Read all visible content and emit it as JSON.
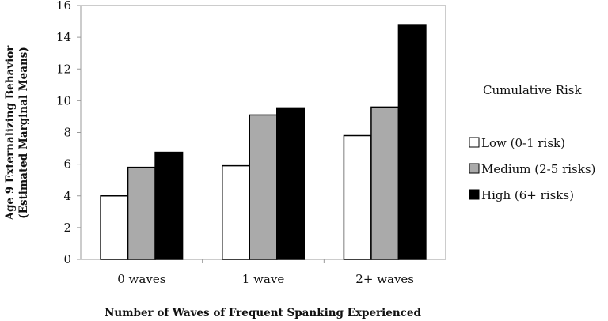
{
  "chart_data": {
    "type": "bar",
    "title": "",
    "xlabel": "Number of Waves of Frequent Spanking Experienced",
    "ylabel": [
      "Age 9 Externalizing Behavior",
      "(Estimated Marginal Means)"
    ],
    "ylim": [
      0,
      16
    ],
    "yticks": [
      0,
      2,
      4,
      6,
      8,
      10,
      12,
      14,
      16
    ],
    "categories": [
      "0 waves",
      "1 wave",
      "2+ waves"
    ],
    "legend_title": "Cumulative Risk",
    "legend_position": "right",
    "grid": false,
    "series": [
      {
        "name": "Low (0-1 risk)",
        "color": "#ffffff",
        "values": [
          4.0,
          5.9,
          7.8
        ]
      },
      {
        "name": "Medium (2-5 risks)",
        "color": "#aaaaaa",
        "values": [
          5.8,
          9.1,
          9.6
        ]
      },
      {
        "name": "High (6+ risks)",
        "color": "#000000",
        "values": [
          6.75,
          9.55,
          14.8
        ]
      }
    ]
  }
}
